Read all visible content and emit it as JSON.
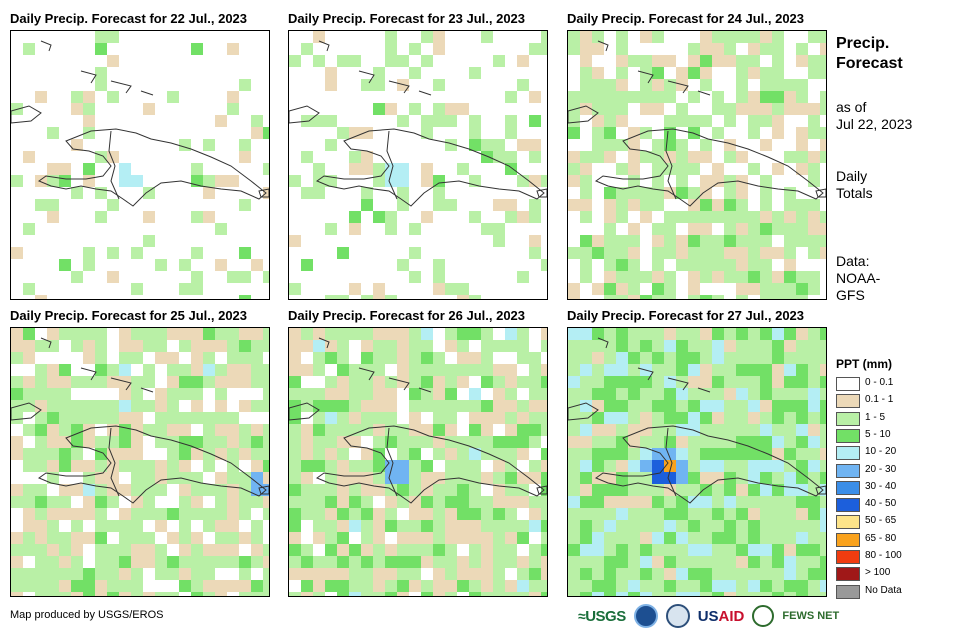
{
  "panels": [
    {
      "title": "Daily Precip. Forecast for 22 Jul., 2023"
    },
    {
      "title": "Daily Precip. Forecast for 23 Jul., 2023"
    },
    {
      "title": "Daily Precip. Forecast for 24 Jul., 2023"
    },
    {
      "title": "Daily Precip. Forecast for 25 Jul., 2023"
    },
    {
      "title": "Daily Precip. Forecast for 26 Jul., 2023"
    },
    {
      "title": "Daily Precip. Forecast for 27 Jul., 2023"
    }
  ],
  "sidebar": {
    "title_line1": "Precip.",
    "title_line2": "Forecast",
    "asof_line1": "as of",
    "asof_line2": "Jul 22, 2023",
    "totals_line1": "Daily",
    "totals_line2": "Totals",
    "data_line1": "Data:",
    "data_line2": "NOAA-",
    "data_line3": "GFS"
  },
  "legend": {
    "title": "PPT (mm)",
    "items": [
      {
        "label": "0 - 0.1",
        "color": "#ffffff"
      },
      {
        "label": "0.1 - 1",
        "color": "#ecd9b8"
      },
      {
        "label": "1 - 5",
        "color": "#b9f0a6"
      },
      {
        "label": "5 - 10",
        "color": "#72e066"
      },
      {
        "label": "10 - 20",
        "color": "#b4eef4"
      },
      {
        "label": "20 - 30",
        "color": "#70b4f2"
      },
      {
        "label": "30 - 40",
        "color": "#3b8ee8"
      },
      {
        "label": "40 - 50",
        "color": "#1c5fdc"
      },
      {
        "label": "50 - 65",
        "color": "#fde48a"
      },
      {
        "label": "65 - 80",
        "color": "#f9a21d"
      },
      {
        "label": "80 - 100",
        "color": "#f03c10"
      },
      {
        "label": "> 100",
        "color": "#a01818"
      },
      {
        "label": "No Data",
        "color": "#999999"
      }
    ]
  },
  "credit": "Map produced by USGS/EROS",
  "logos": {
    "usgs": "USGS",
    "usaid_a": "US",
    "usaid_b": "AID",
    "fews": "FEWS NET"
  },
  "maps": [
    {
      "coverage": [
        0.05,
        0.12,
        0.02,
        0.0
      ],
      "hotspots": [
        [
          0.42,
          0.52,
          0.3
        ]
      ]
    },
    {
      "coverage": [
        0.08,
        0.18,
        0.03,
        0.0
      ],
      "hotspots": [
        [
          0.38,
          0.52,
          0.2
        ]
      ]
    },
    {
      "coverage": [
        0.22,
        0.38,
        0.06,
        0.0
      ],
      "hotspots": []
    },
    {
      "coverage": [
        0.3,
        0.45,
        0.08,
        0.01
      ],
      "hotspots": [
        [
          0.95,
          0.58,
          0.5
        ]
      ]
    },
    {
      "coverage": [
        0.28,
        0.42,
        0.14,
        0.02
      ],
      "hotspots": [
        [
          0.38,
          0.52,
          0.5
        ]
      ]
    },
    {
      "coverage": [
        0.12,
        0.48,
        0.26,
        0.18
      ],
      "hotspots": [
        [
          0.35,
          0.5,
          1.0
        ]
      ]
    }
  ]
}
